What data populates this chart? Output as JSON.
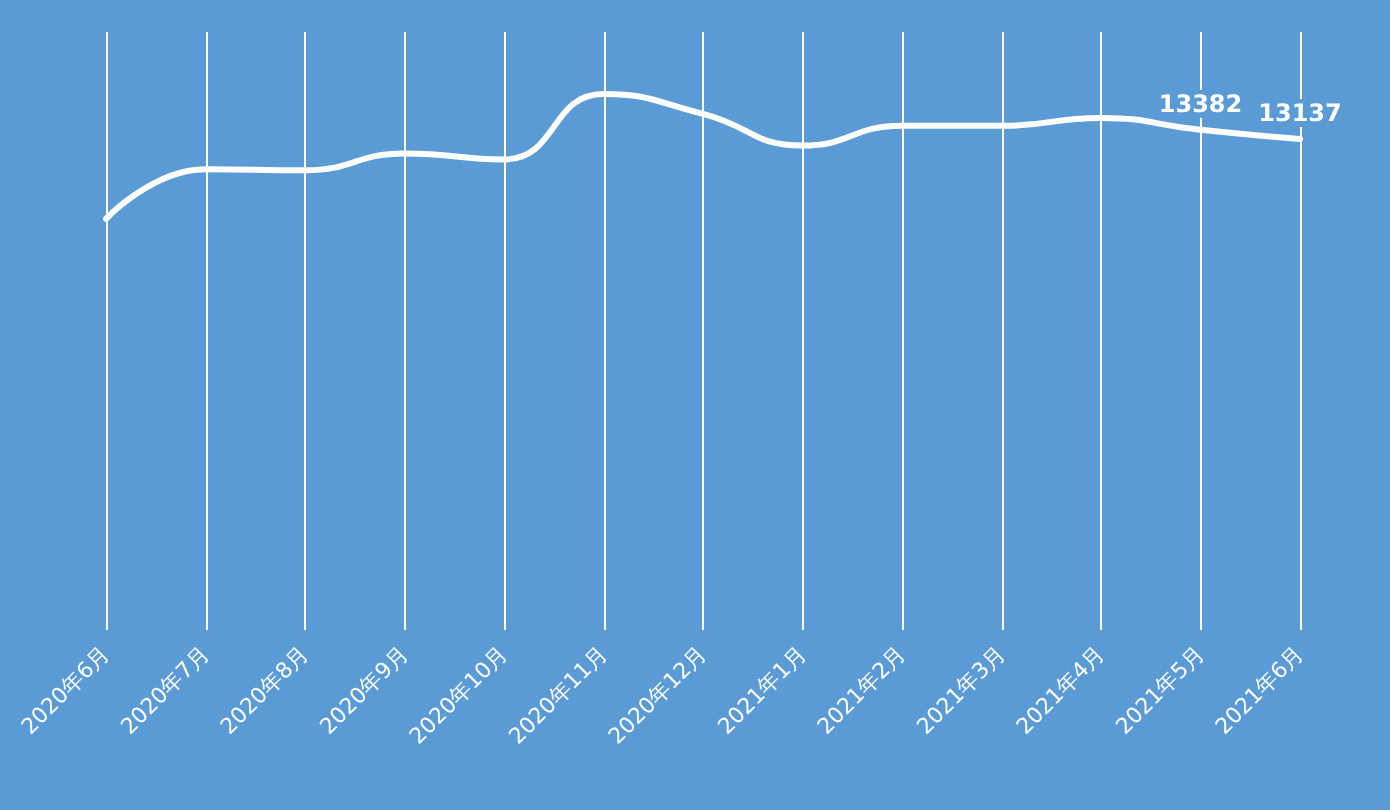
{
  "chart_data": {
    "type": "line",
    "categories": [
      "2020年6月",
      "2020年7月",
      "2020年8月",
      "2020年9月",
      "2020年10月",
      "2020年11月",
      "2020年12月",
      "2021年1月",
      "2021年2月",
      "2021年3月",
      "2021年4月",
      "2021年5月",
      "2021年6月"
    ],
    "series": [
      {
        "color": "#ffffff",
        "values": [
          11000,
          12330,
          12300,
          12750,
          12590,
          14340,
          13810,
          12960,
          13490,
          13490,
          13700,
          13382,
          13137
        ],
        "value_labels": [
          null,
          null,
          null,
          null,
          null,
          null,
          null,
          null,
          null,
          null,
          null,
          "13382",
          "13137"
        ]
      }
    ],
    "ylim": [
      0,
      16000
    ],
    "grid": "x",
    "marker": "none",
    "line_style": "solid",
    "tick_labels": "x"
  }
}
